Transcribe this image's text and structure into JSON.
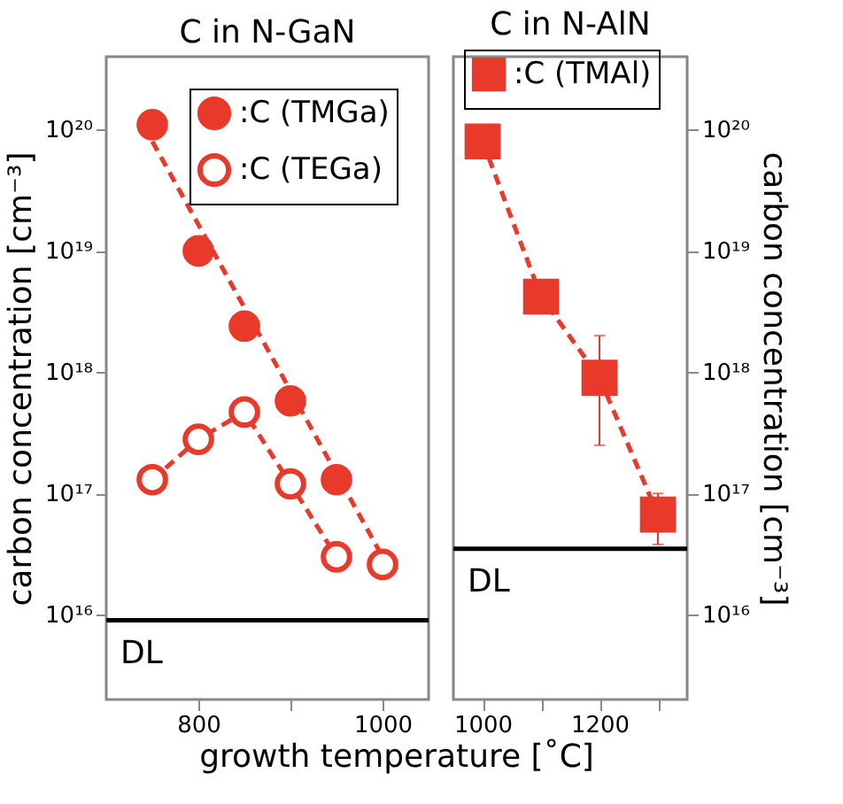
{
  "chart_data": [
    {
      "type": "scatter",
      "title": "C in N-GaN",
      "xlabel": "growth temperature [˚C]",
      "ylabel": "carbon concentration [cm⁻³]",
      "log": "y",
      "legend": "top right",
      "grid": false,
      "xlim": [
        700,
        1050
      ],
      "xticks": [
        800,
        {
          "value": 900,
          "label": null
        },
        1000
      ],
      "ylim": [
        2000000000000000.0,
        4e+20
      ],
      "yticks": [
        {
          "value": 1e+16,
          "label": "10¹⁶"
        },
        {
          "value": 1e+17,
          "label": "10¹⁷"
        },
        {
          "value": 1e+18,
          "label": "10¹⁸"
        },
        {
          "value": 1e+19,
          "label": "10¹⁹"
        },
        {
          "value": 1e+20,
          "label": "10²⁰"
        }
      ],
      "series": [
        {
          "name": ":C (TMGa)",
          "marker": "circle",
          "color": "#e8392a",
          "x": [
            750,
            800,
            850,
            900,
            950
          ],
          "values": [
            1.1e+20,
            1e+19,
            2.4e+18,
            5.8e+17,
            1.3e+17
          ]
        },
        {
          "name": ":C (TEGa)",
          "marker": "circle-open",
          "color": "#e8392a",
          "x": [
            750,
            800,
            850,
            900,
            950,
            1000
          ],
          "values": [
            1.3e+17,
            2.8e+17,
            4.7e+17,
            1.2e+17,
            3e+16,
            2.6e+16
          ]
        },
        {
          "type": "line",
          "line_style": "dashed",
          "color": "#e8392a",
          "x": [
            750,
            1000
          ],
          "values": [
            8e+19,
            3e+16
          ]
        },
        {
          "type": "line",
          "line_style": "dashed",
          "color": "#e8392a",
          "x": [
            750,
            800,
            850,
            900,
            950
          ],
          "values": [
            1.3e+17,
            2.8e+17,
            4.7e+17,
            1.2e+17,
            3e+16
          ]
        }
      ],
      "ref_lines": [
        {
          "axis": "y",
          "value": 9000000000000000.0,
          "label": "DL",
          "color": "#000000"
        }
      ]
    },
    {
      "type": "line",
      "title": "C in N-AlN",
      "ylabel": "carbon concentration [cm⁻³]",
      "log": "y",
      "legend": "top",
      "grid": false,
      "xlim": [
        950,
        1350
      ],
      "xticks": [
        1000,
        {
          "value": 1100,
          "label": null
        },
        1200,
        {
          "value": 1300,
          "label": null
        }
      ],
      "ylim": [
        2000000000000000.0,
        4e+20
      ],
      "yticks": [
        {
          "value": 1e+16,
          "label": "10¹⁶"
        },
        {
          "value": 1e+17,
          "label": "10¹⁷"
        },
        {
          "value": 1e+18,
          "label": "10¹⁸"
        },
        {
          "value": 1e+19,
          "label": "10¹⁹"
        },
        {
          "value": 1e+20,
          "label": "10²⁰"
        }
      ],
      "series": [
        {
          "name": ":C (TMAl)",
          "marker": "square",
          "line_style": "dashed",
          "color": "#e8392a",
          "x": [
            1000,
            1100,
            1200,
            1300
          ],
          "values": [
            8e+19,
            4.2e+18,
            9e+17,
            6.7e+16
          ],
          "errors": [
            null,
            null,
            [
              2.5e+17,
              2e+18
            ],
            [
              3.8e+16,
              1e+17
            ]
          ]
        }
      ],
      "ref_lines": [
        {
          "axis": "y",
          "value": 3.5e+16,
          "label": "DL",
          "color": "#000000"
        }
      ]
    }
  ]
}
